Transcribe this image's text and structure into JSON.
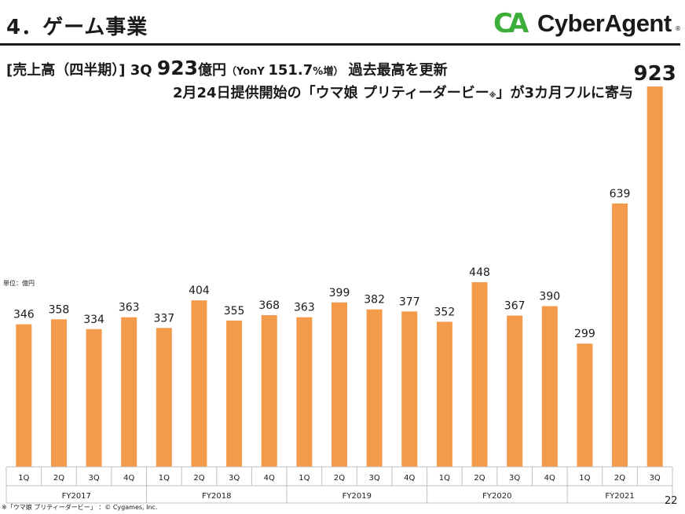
{
  "header": {
    "title": "4．ゲーム事業",
    "logo_mark": "CA",
    "logo_text": "CyberAgent",
    "logo_reg": "®"
  },
  "headline": {
    "prefix": "[売上高（四半期）]  3Q ",
    "value": "923",
    "unit": "億円",
    "yoy_open": "（YonY ",
    "yoy_value": "151.7",
    "yoy_suffix": "%増）",
    "tail": " 過去最高を更新",
    "line2_main": "2月24日提供開始の「ウマ娘 プリティーダービー",
    "line2_mark": "※",
    "line2_tail": "」が3カ月フルに寄与"
  },
  "unit_label": "単位：億円",
  "footnote": "※「ウマ娘 プリティーダービー」 ：© Cygames, Inc.",
  "page_number": "22",
  "colors": {
    "bar": "#f39a4b",
    "axis": "#bfbfbf"
  },
  "chart_data": {
    "type": "bar",
    "title": "売上高（四半期）",
    "ylabel": "単位：億円",
    "ylim": [
      0,
      1000
    ],
    "categories": [
      "1Q",
      "2Q",
      "3Q",
      "4Q",
      "1Q",
      "2Q",
      "3Q",
      "4Q",
      "1Q",
      "2Q",
      "3Q",
      "4Q",
      "1Q",
      "2Q",
      "3Q",
      "4Q",
      "1Q",
      "2Q",
      "3Q"
    ],
    "groups": [
      {
        "label": "FY2017",
        "count": 4
      },
      {
        "label": "FY2018",
        "count": 4
      },
      {
        "label": "FY2019",
        "count": 4
      },
      {
        "label": "FY2020",
        "count": 4
      },
      {
        "label": "FY2021",
        "count": 3
      }
    ],
    "values": [
      346,
      358,
      334,
      363,
      337,
      404,
      355,
      368,
      363,
      399,
      382,
      377,
      352,
      448,
      367,
      390,
      299,
      639,
      923
    ]
  }
}
